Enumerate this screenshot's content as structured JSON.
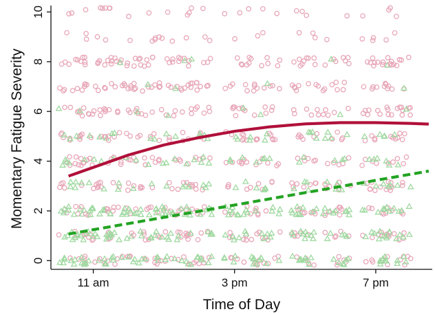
{
  "chart_data": {
    "type": "scatter",
    "title": "",
    "xlabel": "Time of Day",
    "ylabel": "Momentary Fatigue Severity",
    "x_ticks": [
      {
        "hour": 11,
        "label": "11 am"
      },
      {
        "hour": 15,
        "label": "3 pm"
      },
      {
        "hour": 19,
        "label": "7 pm"
      }
    ],
    "y_ticks": [
      0,
      2,
      4,
      6,
      8,
      10
    ],
    "xlim_hours": [
      9.8,
      20.6
    ],
    "ylim": [
      -0.35,
      10.15
    ],
    "grid": false,
    "legend": "none",
    "markers": {
      "circle_color": "#e8a7b8",
      "triangle_color": "#9fd9a0"
    },
    "cluster_hours": [
      10.4,
      11.0,
      11.7,
      12.5,
      13.3,
      14.0,
      15.1,
      15.9,
      17.0,
      17.9,
      19.0,
      19.6
    ],
    "lines": [
      {
        "style": "solid",
        "color": "#b0103a",
        "points": [
          [
            10.3,
            3.4
          ],
          [
            11.0,
            3.75
          ],
          [
            12.0,
            4.25
          ],
          [
            13.0,
            4.65
          ],
          [
            14.0,
            4.95
          ],
          [
            15.0,
            5.2
          ],
          [
            16.0,
            5.38
          ],
          [
            17.0,
            5.5
          ],
          [
            18.0,
            5.55
          ],
          [
            19.0,
            5.55
          ],
          [
            20.0,
            5.52
          ],
          [
            20.5,
            5.49
          ]
        ]
      },
      {
        "style": "dashed",
        "color": "#22a322",
        "points": [
          [
            10.3,
            1.07
          ],
          [
            20.5,
            3.6
          ]
        ]
      }
    ]
  }
}
